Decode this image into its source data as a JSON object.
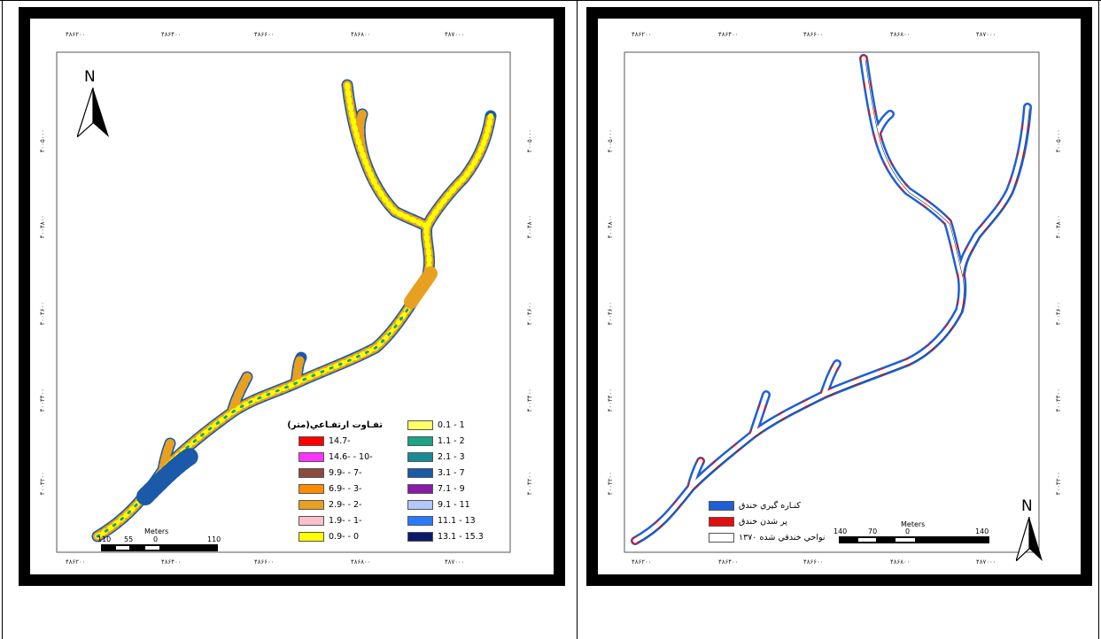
{
  "left_map": {
    "x_ticks": [
      "۴۸۶۲۰۰",
      "۴۸۶۴۰۰",
      "۴۸۶۶۰۰",
      "۴۸۶۸۰۰",
      "۴۸۷۰۰۰"
    ],
    "y_ticks": [
      "۴۰۰۵۰۰۰",
      "۴۰۰۴۸۰۰",
      "۴۰۰۴۶۰۰",
      "۴۰۰۴۴۰۰",
      "۴۰۰۴۲۰۰"
    ],
    "north_label": "N",
    "scale": {
      "unit": "Meters",
      "labels": [
        "110",
        "55",
        "0",
        "110"
      ]
    },
    "legend": {
      "title": "تفـاوت ارتفـاعي(متر)",
      "negative_classes": [
        {
          "label": "14.7-",
          "color": "#ff0000"
        },
        {
          "label": "14.6- - 10-",
          "color": "#ff33ff"
        },
        {
          "label": "9.9- - 7-",
          "color": "#8b4a3c"
        },
        {
          "label": "6.9- - 3-",
          "color": "#ff8c00"
        },
        {
          "label": "2.9- - 2-",
          "color": "#e8a020"
        },
        {
          "label": "1.9- - 1-",
          "color": "#ffc0cb"
        },
        {
          "label": "0.9- - 0",
          "color": "#ffff00"
        }
      ],
      "positive_classes": [
        {
          "label": "0.1 - 1",
          "color": "#ffff66"
        },
        {
          "label": "1.1 - 2",
          "color": "#1aa385"
        },
        {
          "label": "2.1 - 3",
          "color": "#1a8a9a"
        },
        {
          "label": "3.1 - 7",
          "color": "#1a5aa8"
        },
        {
          "label": "7.1 - 9",
          "color": "#8a1aa8"
        },
        {
          "label": "9.1 - 11",
          "color": "#b4c8ff"
        },
        {
          "label": "11.1 - 13",
          "color": "#2a7aff"
        },
        {
          "label": "13.1 - 15.3",
          "color": "#0a1a6a"
        }
      ]
    }
  },
  "right_map": {
    "x_ticks": [
      "۴۸۶۲۰۰",
      "۴۸۶۴۰۰",
      "۴۸۶۶۰۰",
      "۴۸۶۸۰۰",
      "۴۸۷۰۰۰"
    ],
    "y_ticks": [
      "۴۰۰۵۰۰۰",
      "۴۰۰۴۸۰۰",
      "۴۰۰۴۶۰۰",
      "۴۰۰۴۴۰۰",
      "۴۰۰۴۲۰۰"
    ],
    "north_label": "N",
    "scale": {
      "unit": "Meters",
      "labels": [
        "140",
        "70",
        "0",
        "140"
      ]
    },
    "legend": {
      "items": [
        {
          "label": "كنـاره گيري خندق",
          "color": "#1e5fd6"
        },
        {
          "label": "پر شدن خندق",
          "color": "#e01010"
        },
        {
          "label": "نواحي خندقي شده ۱۳۷۰",
          "color": "#ffffff"
        }
      ]
    }
  }
}
